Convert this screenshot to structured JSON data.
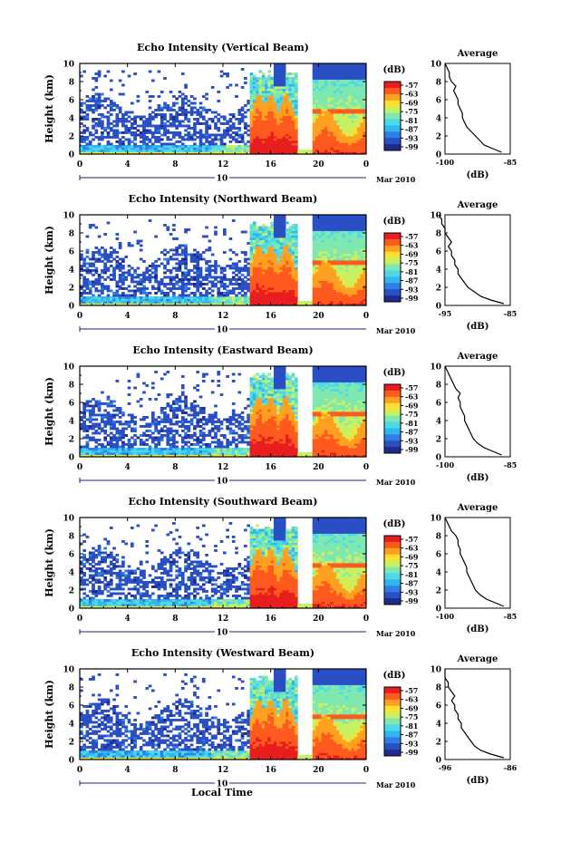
{
  "common": {
    "y_axis_label": "Height (km)",
    "x_axis_label": "Local Time",
    "colorbar_unit": "(dB)",
    "profile_title": "Average",
    "profile_xlabel": "(dB)",
    "date_center": "10",
    "date_right": "Mar 2010",
    "x_ticks": [
      "0",
      "4",
      "8",
      "12",
      "16",
      "20",
      "0"
    ],
    "y_ticks": [
      "0",
      "2",
      "4",
      "6",
      "8",
      "10"
    ],
    "colorbar_ticks": [
      "-57",
      "-63",
      "-69",
      "-75",
      "-81",
      "-87",
      "-93",
      "-99"
    ],
    "colors": {
      "scale": [
        "#1e2a8c",
        "#2a4fc4",
        "#2f7fe8",
        "#2fb8f0",
        "#4fd8e8",
        "#7ee8b0",
        "#c8f060",
        "#ffe030",
        "#ffa020",
        "#ff5a1e",
        "#e81e1e"
      ],
      "frame": "#000000",
      "average_line": "#000000"
    }
  },
  "chart_data": [
    {
      "type": "heatmap",
      "title": "Echo Intensity (Vertical Beam)",
      "xlim": [
        0,
        24
      ],
      "ylim": [
        0,
        10
      ],
      "colorbar_range": [
        -99,
        -57
      ],
      "average_profile": {
        "xlim": [
          -100,
          -85
        ],
        "xticks": [
          "-100",
          "-85"
        ],
        "height_km": [
          0.2,
          0.6,
          1.0,
          1.5,
          2.0,
          2.5,
          3.0,
          3.5,
          4.0,
          4.5,
          5.0,
          5.5,
          6.0,
          6.5,
          7.0,
          7.5,
          8.0,
          8.5,
          9.0,
          9.5,
          10.0
        ],
        "db": [
          -87,
          -89,
          -91,
          -92,
          -93,
          -94,
          -95,
          -95.5,
          -96,
          -96,
          -96.5,
          -97,
          -97,
          -97.5,
          -98,
          -97.5,
          -98.5,
          -99,
          -99,
          -99.5,
          -100
        ]
      }
    },
    {
      "type": "heatmap",
      "title": "Echo Intensity (Northward Beam)",
      "xlim": [
        0,
        24
      ],
      "ylim": [
        0,
        10
      ],
      "colorbar_range": [
        -99,
        -57
      ],
      "average_profile": {
        "xlim": [
          -95,
          -85
        ],
        "xticks": [
          "-95",
          "-85"
        ],
        "height_km": [
          0.2,
          0.6,
          1.0,
          1.5,
          2.0,
          2.5,
          3.0,
          3.5,
          4.0,
          4.5,
          5.0,
          5.5,
          6.0,
          6.5,
          7.0,
          7.5,
          8.0,
          8.5,
          9.0,
          9.5,
          10.0
        ],
        "db": [
          -86,
          -88,
          -89.5,
          -90.5,
          -91.5,
          -92,
          -92.5,
          -93,
          -93,
          -93.5,
          -93.5,
          -94,
          -94,
          -94.5,
          -94,
          -94.5,
          -95,
          -95,
          -95.5,
          -95.5,
          -96
        ]
      }
    },
    {
      "type": "heatmap",
      "title": "Echo Intensity (Eastward Beam)",
      "xlim": [
        0,
        24
      ],
      "ylim": [
        0,
        10
      ],
      "colorbar_range": [
        -99,
        -57
      ],
      "average_profile": {
        "xlim": [
          -100,
          -85
        ],
        "xticks": [
          "-100",
          "-85"
        ],
        "height_km": [
          0.2,
          0.6,
          1.0,
          1.5,
          2.0,
          2.5,
          3.0,
          3.5,
          4.0,
          4.5,
          5.0,
          5.5,
          6.0,
          6.5,
          7.0,
          7.5,
          8.0,
          8.5,
          9.0,
          9.5,
          10.0
        ],
        "db": [
          -87,
          -89,
          -91,
          -92.5,
          -93.5,
          -94,
          -94.5,
          -95,
          -95.5,
          -95.5,
          -96,
          -96.5,
          -96.5,
          -97,
          -96.5,
          -97.5,
          -98,
          -98.5,
          -99,
          -99.5,
          -100
        ]
      }
    },
    {
      "type": "heatmap",
      "title": "Echo Intensity (Southward Beam)",
      "xlim": [
        0,
        24
      ],
      "ylim": [
        0,
        10
      ],
      "colorbar_range": [
        -99,
        -57
      ],
      "average_profile": {
        "xlim": [
          -100,
          -85
        ],
        "xticks": [
          "-100",
          "-85"
        ],
        "height_km": [
          0.2,
          0.6,
          1.0,
          1.5,
          2.0,
          2.5,
          3.0,
          3.5,
          4.0,
          4.5,
          5.0,
          5.5,
          6.0,
          6.5,
          7.0,
          7.5,
          8.0,
          8.5,
          9.0,
          9.5,
          10.0
        ],
        "db": [
          -86.5,
          -88.5,
          -90.5,
          -92,
          -93,
          -93.5,
          -94,
          -94.5,
          -95,
          -95,
          -95.5,
          -96,
          -96.5,
          -96.5,
          -97,
          -97,
          -97.5,
          -98.5,
          -99,
          -99.5,
          -100
        ]
      }
    },
    {
      "type": "heatmap",
      "title": "Echo Intensity (Westward Beam)",
      "xlim": [
        0,
        24
      ],
      "ylim": [
        0,
        10
      ],
      "colorbar_range": [
        -99,
        -57
      ],
      "average_profile": {
        "xlim": [
          -96,
          -86
        ],
        "xticks": [
          "-96",
          "-86"
        ],
        "height_km": [
          0.2,
          0.6,
          1.0,
          1.5,
          2.0,
          2.5,
          3.0,
          3.5,
          4.0,
          4.5,
          5.0,
          5.5,
          6.0,
          6.5,
          7.0,
          7.5,
          8.0,
          8.5,
          9.0,
          9.5,
          10.0
        ],
        "db": [
          -87,
          -89,
          -90.5,
          -91.5,
          -92,
          -92.5,
          -93,
          -93.5,
          -93.5,
          -94,
          -94,
          -94.5,
          -94.5,
          -95,
          -94.5,
          -95,
          -95.5,
          -95.5,
          -96,
          -96,
          -96
        ]
      }
    }
  ]
}
